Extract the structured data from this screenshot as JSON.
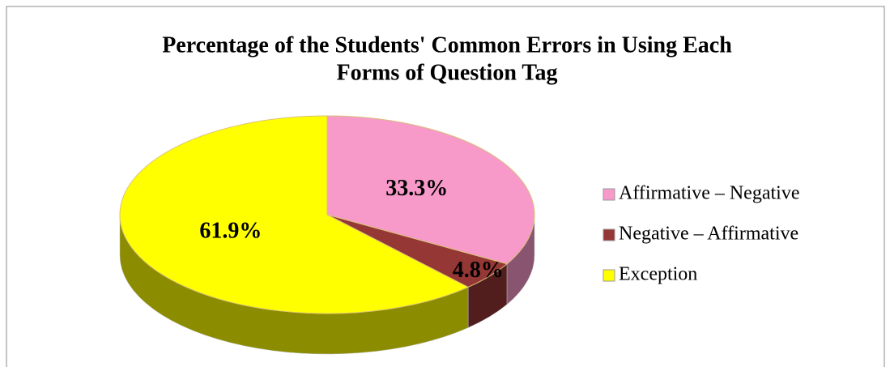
{
  "chart_data": {
    "type": "pie",
    "title": "Percentage of the Students' Common Errors in Using Each Forms of Question Tag",
    "title_lines": [
      "Percentage of the Students' Common Errors in Using Each",
      "Forms of Question Tag"
    ],
    "categories": [
      "Affirmative – Negative",
      "Negative – Affirmative",
      "Exception"
    ],
    "values": [
      33.3,
      4.8,
      61.9
    ],
    "value_labels": [
      "33.3%",
      "4.8%",
      "61.9%"
    ],
    "colors": [
      "#f799c9",
      "#953735",
      "#ffff00"
    ],
    "legend": "right"
  }
}
